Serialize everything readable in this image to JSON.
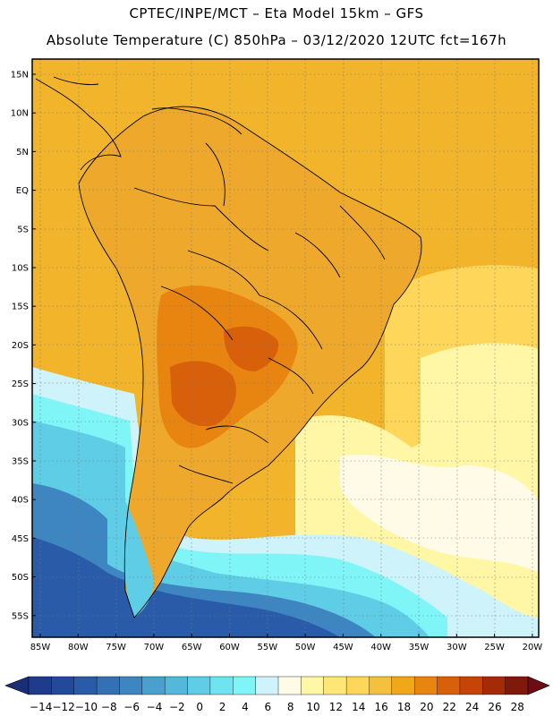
{
  "header": {
    "line1": "CPTEC/INPE/MCT –  Eta Model 15km – GFS",
    "line2": "Absolute Temperature (C) 850hPa – 03/12/2020 12UTC fct=167h"
  },
  "axes": {
    "lat_labels": [
      "15N",
      "10N",
      "5N",
      "EQ",
      "5S",
      "10S",
      "15S",
      "20S",
      "25S",
      "30S",
      "35S",
      "40S",
      "45S",
      "50S",
      "55S"
    ],
    "lon_labels": [
      "85W",
      "80W",
      "75W",
      "70W",
      "65W",
      "60W",
      "55W",
      "50W",
      "45W",
      "40W",
      "35W",
      "30W",
      "25W",
      "20W"
    ]
  },
  "colorbar": {
    "labels": [
      "-14",
      "-12",
      "-10",
      "-8",
      "-6",
      "-4",
      "-2",
      "0",
      "2",
      "4",
      "6",
      "8",
      "10",
      "12",
      "14",
      "16",
      "18",
      "20",
      "22",
      "24",
      "26",
      "28"
    ],
    "colors": [
      "#1f3c8c",
      "#23499b",
      "#2a5ba8",
      "#3470b5",
      "#3e86c2",
      "#4a9fcf",
      "#54b8dd",
      "#5fcde6",
      "#6fe3ef",
      "#7ff5f8",
      "#cff3fb",
      "#fffbe6",
      "#fff6a6",
      "#ffe777",
      "#fdd65a",
      "#f6c03f",
      "#f0a81a",
      "#e88510",
      "#d9600a",
      "#c54406",
      "#a52a06",
      "#7f1a0a"
    ],
    "low_arrow_color": "#1a2e78",
    "high_arrow_color": "#6e0c16"
  },
  "map_colors": {
    "land_base": "#eea92c",
    "ocean_warm": "#f1b42a",
    "ocean_mid": "#fdd65a",
    "ocean_light": "#fff6a6",
    "cream": "#fffbe6",
    "pale_cyan": "#cff3fb",
    "cyan": "#7ff5f8",
    "teal": "#5fcde6",
    "blue": "#3e86c2",
    "dark_blue": "#2a5ba8",
    "hot": "#e88510",
    "hotter": "#d9600a"
  }
}
